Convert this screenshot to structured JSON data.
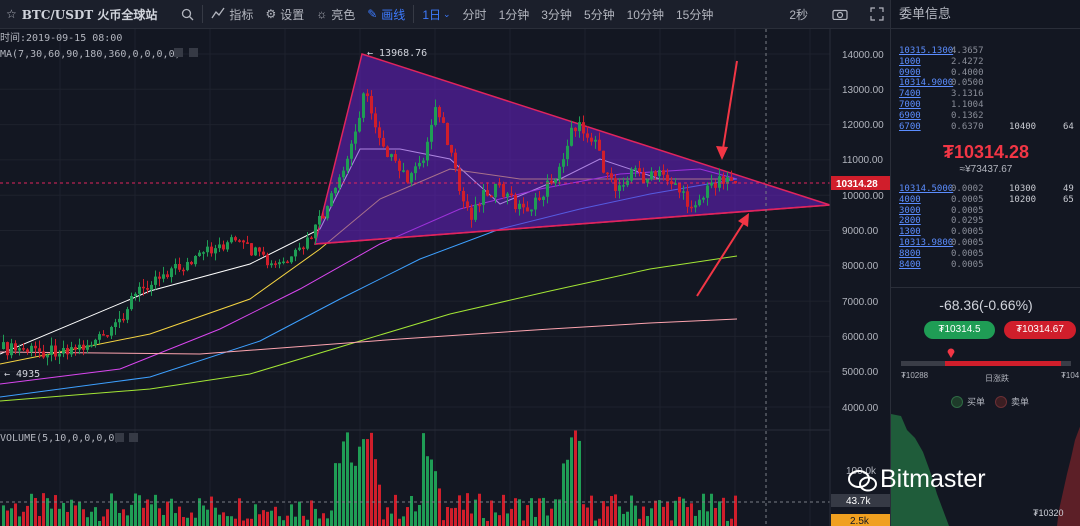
{
  "toolbar": {
    "symbol": "BTC/USDT 火币全球站",
    "indicators": "指标",
    "settings": "设置",
    "theme": "亮色",
    "draw": "画线",
    "interval_selected": "1日",
    "intervals": [
      "分时",
      "1分钟",
      "3分钟",
      "5分钟",
      "10分钟",
      "15分钟"
    ],
    "refresh": "2秒"
  },
  "chart": {
    "time_label": "时间:2019-09-15 08:00",
    "ma_label": "MA(7,30,60,90,180,360,0,0,0,0)",
    "volume_label": "VOLUME(5,10,0,0,0,0)",
    "price_axis": [
      "14000.00",
      "13000.00",
      "12000.00",
      "11000.00",
      "10000.00",
      "9000.00",
      "8000.00",
      "7000.00",
      "6000.00",
      "5000.00",
      "4000.00"
    ],
    "current_price": "10314.28",
    "high_label": "← 13968.76",
    "low_label": "← 4935",
    "volume_axis": [
      "100.0k"
    ],
    "volume_current": "43.7k",
    "volume_ma": "2.5k",
    "colors": {
      "up": "#1f9d55",
      "down": "#d01e2b",
      "triangle": "#7b2ff7",
      "edge": "#e0245e"
    }
  },
  "side": {
    "title": "委单信息",
    "asks": [
      {
        "price": "10315.1300",
        "amount": "4.3657",
        "x1": "",
        "x2": ""
      },
      {
        "price": "1000",
        "amount": "2.4272",
        "x1": "",
        "x2": ""
      },
      {
        "price": "0900",
        "amount": "0.4000",
        "x1": "",
        "x2": ""
      },
      {
        "price": "10314.9000",
        "amount": "0.0500",
        "x1": "",
        "x2": ""
      },
      {
        "price": "7400",
        "amount": "3.1316",
        "x1": "",
        "x2": ""
      },
      {
        "price": "7000",
        "amount": "1.1004",
        "x1": "",
        "x2": ""
      },
      {
        "price": "6900",
        "amount": "0.1362",
        "x1": "",
        "x2": ""
      },
      {
        "price": "6700",
        "amount": "0.6370",
        "x1": "10400",
        "x2": "64"
      }
    ],
    "last_price": "₮10314.28",
    "last_cny": "≈¥73437.67",
    "bids": [
      {
        "price": "10314.5000",
        "amount": "0.0002",
        "x1": "10300",
        "x2": "49"
      },
      {
        "price": "4000",
        "amount": "0.0005",
        "x1": "10200",
        "x2": "65"
      },
      {
        "price": "3000",
        "amount": "0.0005",
        "x1": "",
        "x2": ""
      },
      {
        "price": "2800",
        "amount": "0.0295",
        "x1": "",
        "x2": ""
      },
      {
        "price": "1300",
        "amount": "0.0005",
        "x1": "",
        "x2": ""
      },
      {
        "price": "10313.9800",
        "amount": "0.0005",
        "x1": "",
        "x2": ""
      },
      {
        "price": "8800",
        "amount": "0.0005",
        "x1": "",
        "x2": ""
      },
      {
        "price": "8400",
        "amount": "0.0005",
        "x1": "",
        "x2": ""
      }
    ],
    "change": "-68.36(-0.66%)",
    "buy_button": "₮10314.5",
    "sell_button": "₮10314.67",
    "range_low": "₮10288",
    "range_high": "₮104",
    "range_label": "日涨跌",
    "legend_buy": "买单",
    "legend_sell": "卖单",
    "depth_price": "₮10320",
    "watermark": "Bitmaster"
  }
}
